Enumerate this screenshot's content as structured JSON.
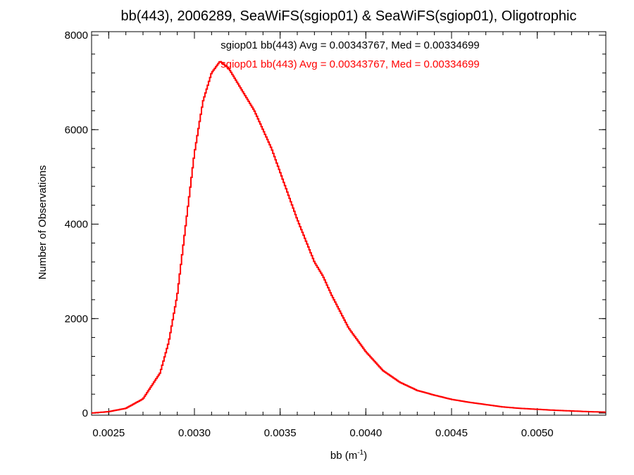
{
  "chart_data": {
    "type": "line",
    "step": true,
    "title": "bb(443), 2006289, SeaWiFS(sgiop01) & SeaWiFS(sgiop01), Oligotrophic",
    "xlabel_main": "bb (m",
    "xlabel_sup": "-1",
    "xlabel_close": ")",
    "ylabel": "Number of Observations",
    "xlim": [
      0.0024,
      0.0054
    ],
    "ylim": [
      0,
      8000
    ],
    "x_ticks": [
      {
        "value": 0.0025,
        "label": "0.0025"
      },
      {
        "value": 0.003,
        "label": "0.0030"
      },
      {
        "value": 0.0035,
        "label": "0.0035"
      },
      {
        "value": 0.004,
        "label": "0.0040"
      },
      {
        "value": 0.0045,
        "label": "0.0045"
      },
      {
        "value": 0.005,
        "label": "0.0050"
      }
    ],
    "y_ticks": [
      {
        "value": 0,
        "label": "0"
      },
      {
        "value": 2000,
        "label": "2000"
      },
      {
        "value": 4000,
        "label": "4000"
      },
      {
        "value": 6000,
        "label": "6000"
      },
      {
        "value": 8000,
        "label": "8000"
      }
    ],
    "x_minor_step": 0.0001,
    "y_minor_step": 400,
    "annotations": [
      {
        "text": "sgiop01 bb(443) Avg = 0.00343767, Med = 0.00334699",
        "color": "#000000"
      },
      {
        "text": "sgiop01 bb(443) Avg = 0.00343767, Med = 0.00334699",
        "color": "#ff0000"
      }
    ],
    "series": [
      {
        "color": "#ff0000",
        "x": [
          0.0024,
          0.0025,
          0.0026,
          0.0027,
          0.0028,
          0.00285,
          0.0029,
          0.00295,
          0.003,
          0.00305,
          0.0031,
          0.00315,
          0.0032,
          0.00325,
          0.0033,
          0.00335,
          0.0034,
          0.00345,
          0.0035,
          0.00355,
          0.0036,
          0.00365,
          0.0037,
          0.00375,
          0.0038,
          0.00385,
          0.0039,
          0.004,
          0.0041,
          0.0042,
          0.0043,
          0.0044,
          0.0045,
          0.0046,
          0.0047,
          0.0048,
          0.0049,
          0.005,
          0.0051,
          0.0052,
          0.0053,
          0.0054
        ],
        "y": [
          0,
          30,
          100,
          300,
          850,
          1500,
          2500,
          4000,
          5500,
          6600,
          7200,
          7450,
          7300,
          7000,
          6700,
          6400,
          6000,
          5600,
          5100,
          4600,
          4100,
          3650,
          3200,
          2900,
          2500,
          2150,
          1800,
          1300,
          900,
          650,
          480,
          380,
          290,
          230,
          180,
          130,
          100,
          80,
          60,
          45,
          30,
          20
        ]
      }
    ]
  }
}
